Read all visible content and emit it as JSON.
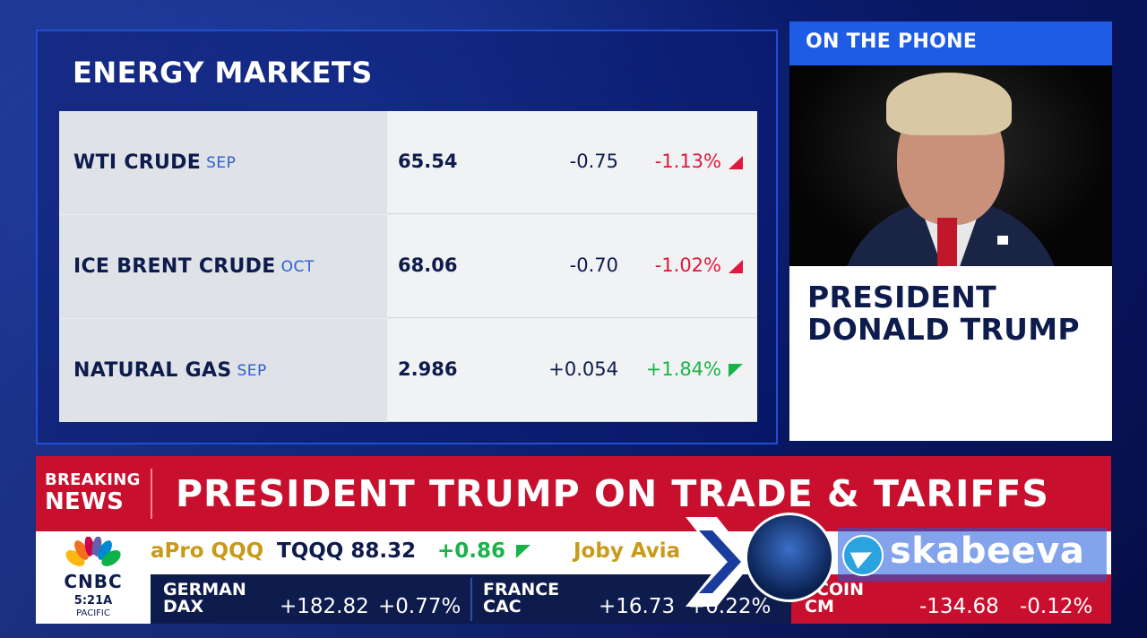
{
  "energy_markets": {
    "title": "ENERGY MARKETS",
    "rows": [
      {
        "name": "WTI CRUDE",
        "month": "SEP",
        "price": "65.54",
        "change": "-0.75",
        "pct": "-1.13%",
        "direction": "down"
      },
      {
        "name": "ICE BRENT CRUDE",
        "month": "OCT",
        "price": "68.06",
        "change": "-0.70",
        "pct": "-1.02%",
        "direction": "down"
      },
      {
        "name": "NATURAL GAS",
        "month": "SEP",
        "price": "2.986",
        "change": "+0.054",
        "pct": "+1.84%",
        "direction": "up"
      }
    ]
  },
  "phone_panel": {
    "header": "ON THE PHONE",
    "name_line1": "PRESIDENT",
    "name_line2": "DONALD TRUMP"
  },
  "breaking": {
    "label_line1": "BREAKING",
    "label_line2": "NEWS",
    "headline": "PRESIDENT TRUMP ON TRADE & TARIFFS"
  },
  "network": {
    "logo_text": "CNBC",
    "time": "5:21A",
    "timezone": "PACIFIC"
  },
  "ticker_top": [
    {
      "text": "aPro QQQ",
      "style": "gold"
    },
    {
      "text": "TQQQ 88.32",
      "style": "dark"
    },
    {
      "text": "+0.86",
      "style": "green"
    },
    {
      "text": "Joby Avia",
      "style": "gold"
    }
  ],
  "ticker_bottom": [
    {
      "name_line1": "GERMAN",
      "name_line2": "DAX",
      "value": "+182.82",
      "pct": "+0.77%"
    },
    {
      "name_line1": "FRANCE",
      "name_line2": "CAC",
      "value": "+16.73",
      "pct": "+0.22%"
    },
    {
      "name_line1": "TCOIN",
      "name_line2": "CM",
      "value": "-134.68",
      "pct": "-0.12%"
    }
  ],
  "watermark": {
    "text": "skabeeva"
  },
  "colors": {
    "cnbc_red": "#c8102e",
    "navy": "#0d1b4d",
    "accent_blue": "#1f5ce6",
    "negative": "#e0173e",
    "positive": "#19b34a"
  }
}
